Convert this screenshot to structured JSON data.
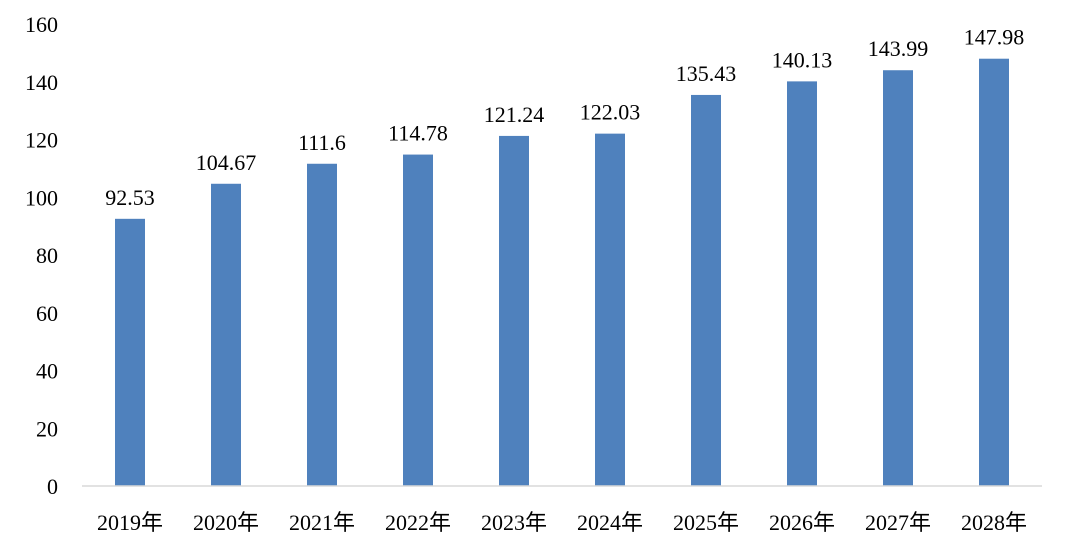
{
  "chart_data": {
    "type": "bar",
    "categories": [
      "2019年",
      "2020年",
      "2021年",
      "2022年",
      "2023年",
      "2024年",
      "2025年",
      "2026年",
      "2027年",
      "2028年"
    ],
    "values": [
      92.53,
      104.67,
      111.6,
      114.78,
      121.24,
      122.03,
      135.43,
      140.13,
      143.99,
      147.98
    ],
    "value_labels": [
      "92.53",
      "104.67",
      "111.6",
      "114.78",
      "121.24",
      "122.03",
      "135.43",
      "140.13",
      "143.99",
      "147.98"
    ],
    "y_ticks": [
      "0",
      "20",
      "40",
      "60",
      "80",
      "100",
      "120",
      "140",
      "160"
    ],
    "ylim": [
      0,
      160
    ],
    "title": "",
    "xlabel": "",
    "ylabel": "",
    "grid": false,
    "legend": false,
    "colors": {
      "bar": "#4F81BD",
      "axis": "#D9D9D9"
    }
  }
}
